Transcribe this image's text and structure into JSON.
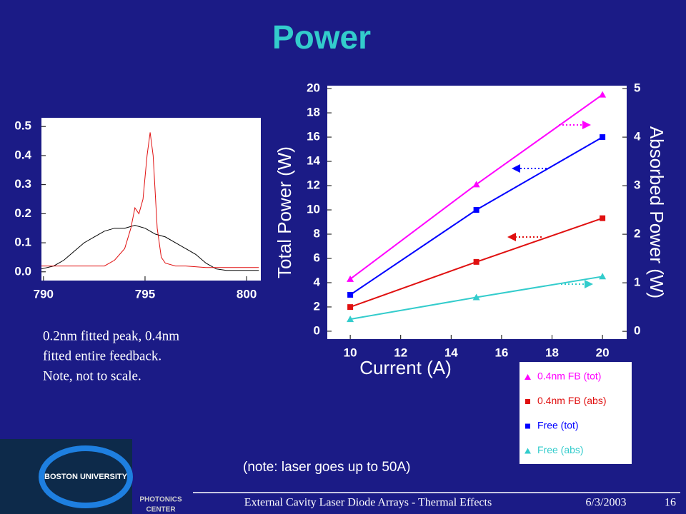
{
  "slide": {
    "title": "Power",
    "caption": [
      "0.2nm fitted peak, 0.4nm",
      "fitted entire feedback.",
      "Note, not to scale."
    ],
    "note": "(note: laser goes up to 50A)",
    "footer": "External Cavity Laser Diode Arrays - Thermal Effects",
    "date": "6/3/2003",
    "page": "16",
    "logo": [
      "BOSTON UNIVERSITY",
      "PHOTONICS",
      "CENTER"
    ]
  },
  "chart_data": [
    {
      "type": "line",
      "xlim": [
        789.9,
        800.7
      ],
      "ylim": [
        -0.03,
        0.53
      ],
      "xticks": [
        790,
        795,
        800
      ],
      "yticks": [
        {
          "value": 0,
          "label": "0.0"
        },
        0.1,
        0.2,
        0.3,
        0.4,
        0.5
      ],
      "series": [
        {
          "color": "#000000",
          "x": [
            789.9,
            790.5,
            791,
            791.5,
            792,
            792.5,
            793,
            793.5,
            794,
            794.5,
            795,
            795.5,
            796,
            796.5,
            797,
            797.5,
            798,
            798.5,
            799,
            800,
            800.6
          ],
          "values": [
            0.01,
            0.02,
            0.04,
            0.07,
            0.1,
            0.12,
            0.14,
            0.15,
            0.15,
            0.16,
            0.15,
            0.13,
            0.12,
            0.1,
            0.08,
            0.06,
            0.03,
            0.01,
            0.005,
            0.005,
            0.005
          ]
        },
        {
          "color": "#e01010",
          "x": [
            789.9,
            791,
            792,
            793,
            793.5,
            794,
            794.3,
            794.5,
            794.7,
            794.9,
            795.1,
            795.25,
            795.4,
            795.6,
            795.8,
            796,
            796.5,
            797,
            798,
            800,
            800.6
          ],
          "values": [
            0.02,
            0.02,
            0.02,
            0.02,
            0.04,
            0.08,
            0.15,
            0.22,
            0.2,
            0.25,
            0.4,
            0.48,
            0.4,
            0.15,
            0.05,
            0.03,
            0.02,
            0.02,
            0.015,
            0.015,
            0.015
          ]
        }
      ]
    },
    {
      "type": "line",
      "xlabel": "Current (A)",
      "ylabel": "Total Power (W)",
      "y2label": "Absorbed Power (W)",
      "xlim": [
        9.09,
        20.96
      ],
      "ylim": [
        -0.65,
        20.24
      ],
      "y2lim": [
        -0.16,
        5.06
      ],
      "xticks": [
        10,
        12,
        14,
        16,
        18,
        20
      ],
      "yticks": [
        0,
        2,
        4,
        6,
        8,
        10,
        12,
        14,
        16,
        18,
        20
      ],
      "y2ticks": [
        0,
        1,
        2,
        3,
        4,
        5
      ],
      "x": [
        10,
        15,
        20
      ],
      "series": [
        {
          "name": "0.4nm FB (tot)",
          "color": "#ff00ff",
          "marker": "triangle",
          "values": [
            4.3,
            12.1,
            19.5
          ]
        },
        {
          "name": "0.4nm FB (abs)",
          "color": "#e01010",
          "marker": "square",
          "axis": "y2",
          "values": [
            0.5,
            1.43,
            2.33
          ]
        },
        {
          "name": "Free (tot)",
          "color": "#0000ff",
          "marker": "square",
          "values": [
            3.0,
            10.0,
            16.0
          ]
        },
        {
          "name": "Free (abs)",
          "color": "#33cccc",
          "marker": "triangle",
          "axis": "y2",
          "values": [
            0.25,
            0.7,
            1.13
          ]
        }
      ]
    }
  ]
}
